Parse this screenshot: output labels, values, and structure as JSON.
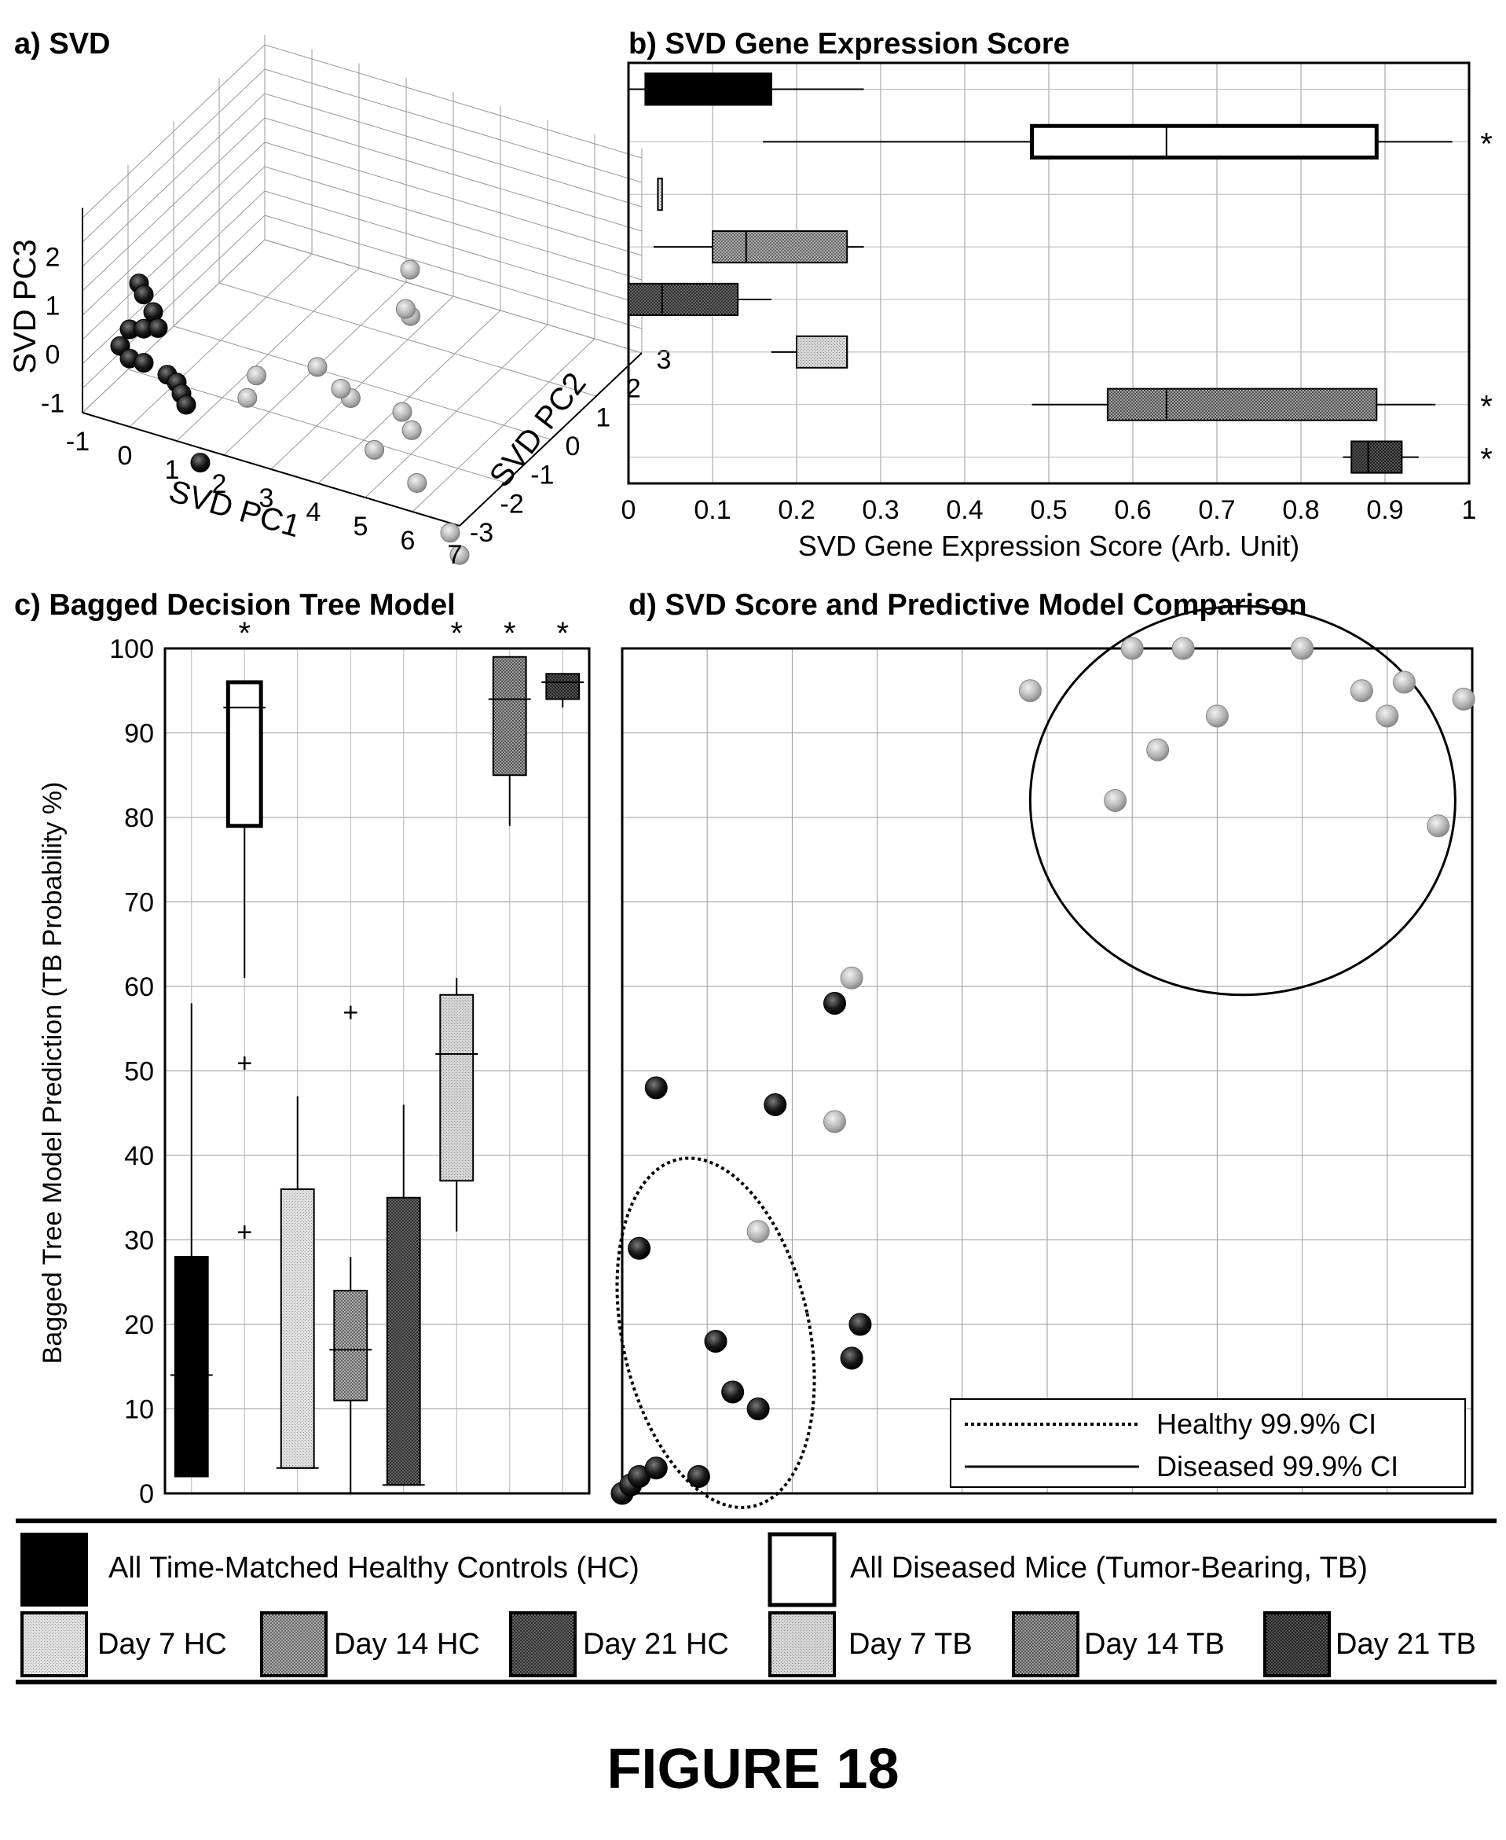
{
  "figure_title": "FIGURE 18",
  "chart_data": [
    {
      "panel": "a) SVD",
      "type": "scatter",
      "title": "a) SVD",
      "xlabel": "SVD PC1",
      "ylabel": "SVD PC2",
      "zlabel": "SVD PC3",
      "x_ticks": [
        "-1",
        "0",
        "1",
        "2",
        "3",
        "4",
        "5",
        "6",
        "7"
      ],
      "y_ticks": [
        "-3",
        "-2",
        "-1",
        "0",
        "1",
        "2",
        "3"
      ],
      "z_ticks": [
        "-1",
        "0",
        "1",
        "2"
      ],
      "grid": true,
      "series": [
        {
          "group": "healthy",
          "points": [
            {
              "x": 0.2,
              "y": -1.0,
              "z": 2.0
            },
            {
              "x": 0.3,
              "y": -1.0,
              "z": 1.8
            },
            {
              "x": 0.5,
              "y": -1.0,
              "z": 1.5
            },
            {
              "x": 0.0,
              "y": -1.0,
              "z": 1.0
            },
            {
              "x": 0.3,
              "y": -1.0,
              "z": 1.1
            },
            {
              "x": 0.6,
              "y": -1.0,
              "z": 1.2
            },
            {
              "x": -0.2,
              "y": -1.0,
              "z": 0.6
            },
            {
              "x": 0.0,
              "y": -1.0,
              "z": 0.4
            },
            {
              "x": 0.3,
              "y": -1.0,
              "z": 0.4
            },
            {
              "x": 0.8,
              "y": -1.0,
              "z": 0.3
            },
            {
              "x": 1.0,
              "y": -1.0,
              "z": 0.2
            },
            {
              "x": 1.1,
              "y": -1.0,
              "z": 0.0
            },
            {
              "x": 1.2,
              "y": -1.0,
              "z": -0.2
            },
            {
              "x": 1.5,
              "y": -1.0,
              "z": -1.3
            }
          ]
        },
        {
          "group": "diseased",
          "points": [
            {
              "x": 4.5,
              "y": 0.5,
              "z": 2.2
            },
            {
              "x": 4.8,
              "y": 0.2,
              "z": 1.6
            },
            {
              "x": 4.6,
              "y": 0.3,
              "z": 1.6
            },
            {
              "x": 3.5,
              "y": -0.5,
              "z": 0.8
            },
            {
              "x": 2.5,
              "y": -0.8,
              "z": 0.6
            },
            {
              "x": 2.4,
              "y": -0.9,
              "z": 0.2
            },
            {
              "x": 4.4,
              "y": -0.7,
              "z": 0.6
            },
            {
              "x": 4.0,
              "y": -0.5,
              "z": 0.5
            },
            {
              "x": 5.3,
              "y": -0.5,
              "z": 0.4
            },
            {
              "x": 5.6,
              "y": -0.6,
              "z": 0.2
            },
            {
              "x": 5.0,
              "y": -0.8,
              "z": -0.2
            },
            {
              "x": 6.0,
              "y": -0.9,
              "z": -0.5
            },
            {
              "x": 6.8,
              "y": -1.0,
              "z": -1.2
            },
            {
              "x": 7.0,
              "y": -1.0,
              "z": -1.6
            }
          ]
        }
      ]
    },
    {
      "panel": "b) SVD Gene Expression Score",
      "type": "box",
      "orientation": "horizontal",
      "title": "b) SVD Gene Expression Score",
      "xlabel": "SVD Gene Expression Score (Arb. Unit)",
      "xlim": [
        0,
        1
      ],
      "x_ticks": [
        "0",
        "0.1",
        "0.2",
        "0.3",
        "0.4",
        "0.5",
        "0.6",
        "0.7",
        "0.8",
        "0.9",
        "1"
      ],
      "grid": true,
      "boxes": [
        {
          "group": "All Time-Matched Healthy Controls (HC)",
          "whisker_low": 0.0,
          "q1": 0.02,
          "median": 0.09,
          "q3": 0.17,
          "whisker_high": 0.28,
          "significant": false
        },
        {
          "group": "All Diseased Mice (Tumor-Bearing, TB)",
          "whisker_low": 0.16,
          "q1": 0.48,
          "median": 0.64,
          "q3": 0.89,
          "whisker_high": 0.98,
          "significant": true
        },
        {
          "group": "Day 7 HC",
          "whisker_low": 0.035,
          "q1": 0.035,
          "median": 0.035,
          "q3": 0.04,
          "whisker_high": 0.04,
          "significant": false
        },
        {
          "group": "Day 14 HC",
          "whisker_low": 0.03,
          "q1": 0.1,
          "median": 0.14,
          "q3": 0.26,
          "whisker_high": 0.28,
          "significant": false
        },
        {
          "group": "Day 21 HC",
          "whisker_low": 0.0,
          "q1": 0.0,
          "median": 0.04,
          "q3": 0.13,
          "whisker_high": 0.17,
          "significant": false
        },
        {
          "group": "Day 7 TB",
          "whisker_low": 0.17,
          "q1": 0.2,
          "median": 0.26,
          "q3": 0.26,
          "whisker_high": 0.26,
          "significant": false
        },
        {
          "group": "Day 14 TB",
          "whisker_low": 0.48,
          "q1": 0.57,
          "median": 0.64,
          "q3": 0.89,
          "whisker_high": 0.96,
          "significant": true
        },
        {
          "group": "Day 21 TB",
          "whisker_low": 0.85,
          "q1": 0.86,
          "median": 0.88,
          "q3": 0.92,
          "whisker_high": 0.94,
          "significant": true
        }
      ],
      "significance_marks": [
        "*",
        "*",
        "*"
      ]
    },
    {
      "panel": "c) Bagged Decision Tree Model",
      "type": "box",
      "orientation": "vertical",
      "title": "c) Bagged Decision Tree Model",
      "ylabel": "Bagged Tree Model Prediction (TB Probability %)",
      "ylim": [
        0,
        100
      ],
      "y_ticks": [
        "0",
        "10",
        "20",
        "30",
        "40",
        "50",
        "60",
        "70",
        "80",
        "90",
        "100"
      ],
      "grid": true,
      "boxes": [
        {
          "group": "All Time-Matched Healthy Controls (HC)",
          "whisker_low": 2,
          "q1": 2,
          "median": 14,
          "q3": 28,
          "whisker_high": 58,
          "outliers": [],
          "significant": false
        },
        {
          "group": "All Diseased Mice (Tumor-Bearing, TB)",
          "whisker_low": 61,
          "q1": 79,
          "median": 93,
          "q3": 96,
          "whisker_high": 96,
          "outliers": [
            51,
            31
          ],
          "significant": true
        },
        {
          "group": "Day 7 HC",
          "whisker_low": 3,
          "q1": 3,
          "median": 3,
          "q3": 36,
          "whisker_high": 47,
          "outliers": [],
          "significant": false
        },
        {
          "group": "Day 14 HC",
          "whisker_low": 0,
          "q1": 11,
          "median": 17,
          "q3": 24,
          "whisker_high": 28,
          "outliers": [
            57
          ],
          "significant": false
        },
        {
          "group": "Day 21 HC",
          "whisker_low": 1,
          "q1": 1,
          "median": 1,
          "q3": 35,
          "whisker_high": 46,
          "outliers": [],
          "significant": false
        },
        {
          "group": "Day 7 TB",
          "whisker_low": 31,
          "q1": 37,
          "median": 52,
          "q3": 59,
          "whisker_high": 61,
          "outliers": [],
          "significant": true
        },
        {
          "group": "Day 14 TB",
          "whisker_low": 79,
          "q1": 85,
          "median": 94,
          "q3": 99,
          "whisker_high": 99,
          "outliers": [],
          "significant": true
        },
        {
          "group": "Day 21 TB",
          "whisker_low": 93,
          "q1": 94,
          "median": 96,
          "q3": 97,
          "whisker_high": 97,
          "outliers": [],
          "significant": true
        }
      ],
      "significance_marks": [
        "*",
        "*",
        "*",
        "*"
      ]
    },
    {
      "panel": "d) SVD Score and Predictive Model Comparison",
      "type": "scatter",
      "title": "d) SVD Score and Predictive Model Comparison",
      "xlim": [
        0,
        1
      ],
      "ylim": [
        0,
        100
      ],
      "grid": true,
      "legend": [
        "Healthy 99.9% CI",
        "Diseased 99.9% CI"
      ],
      "legend_position": "bottom-right",
      "series": [
        {
          "group": "healthy",
          "points": [
            {
              "x": 0.0,
              "y": 0
            },
            {
              "x": 0.01,
              "y": 1
            },
            {
              "x": 0.02,
              "y": 2
            },
            {
              "x": 0.04,
              "y": 3
            },
            {
              "x": 0.09,
              "y": 2
            },
            {
              "x": 0.02,
              "y": 29
            },
            {
              "x": 0.04,
              "y": 48
            },
            {
              "x": 0.11,
              "y": 18
            },
            {
              "x": 0.13,
              "y": 12
            },
            {
              "x": 0.16,
              "y": 10
            },
            {
              "x": 0.18,
              "y": 46
            },
            {
              "x": 0.25,
              "y": 58
            },
            {
              "x": 0.27,
              "y": 16
            },
            {
              "x": 0.28,
              "y": 20
            }
          ]
        },
        {
          "group": "diseased",
          "points": [
            {
              "x": 0.48,
              "y": 95
            },
            {
              "x": 0.58,
              "y": 82
            },
            {
              "x": 0.6,
              "y": 100
            },
            {
              "x": 0.63,
              "y": 88
            },
            {
              "x": 0.66,
              "y": 100
            },
            {
              "x": 0.7,
              "y": 92
            },
            {
              "x": 0.8,
              "y": 100
            },
            {
              "x": 0.87,
              "y": 95
            },
            {
              "x": 0.9,
              "y": 92
            },
            {
              "x": 0.92,
              "y": 96
            },
            {
              "x": 0.96,
              "y": 79
            },
            {
              "x": 0.99,
              "y": 94
            },
            {
              "x": 0.16,
              "y": 31
            },
            {
              "x": 0.25,
              "y": 44
            },
            {
              "x": 0.27,
              "y": 61
            }
          ]
        }
      ]
    }
  ],
  "legend": {
    "row1": [
      {
        "label": "All Time-Matched Healthy Controls (HC)",
        "fill": "#000000"
      },
      {
        "label": "All Diseased Mice (Tumor-Bearing, TB)",
        "fill": "#ffffff"
      }
    ],
    "row2": [
      {
        "label": "Day 7 HC",
        "fill": "#d2d2d2"
      },
      {
        "label": "Day 14 HC",
        "fill": "#9e9e9e"
      },
      {
        "label": "Day 21 HC",
        "fill": "#5a5a5a"
      },
      {
        "label": "Day 7 TB",
        "fill": "#cacaca"
      },
      {
        "label": "Day 14 TB",
        "fill": "#8c8c8c"
      },
      {
        "label": "Day 21 TB",
        "fill": "#454545"
      }
    ]
  }
}
